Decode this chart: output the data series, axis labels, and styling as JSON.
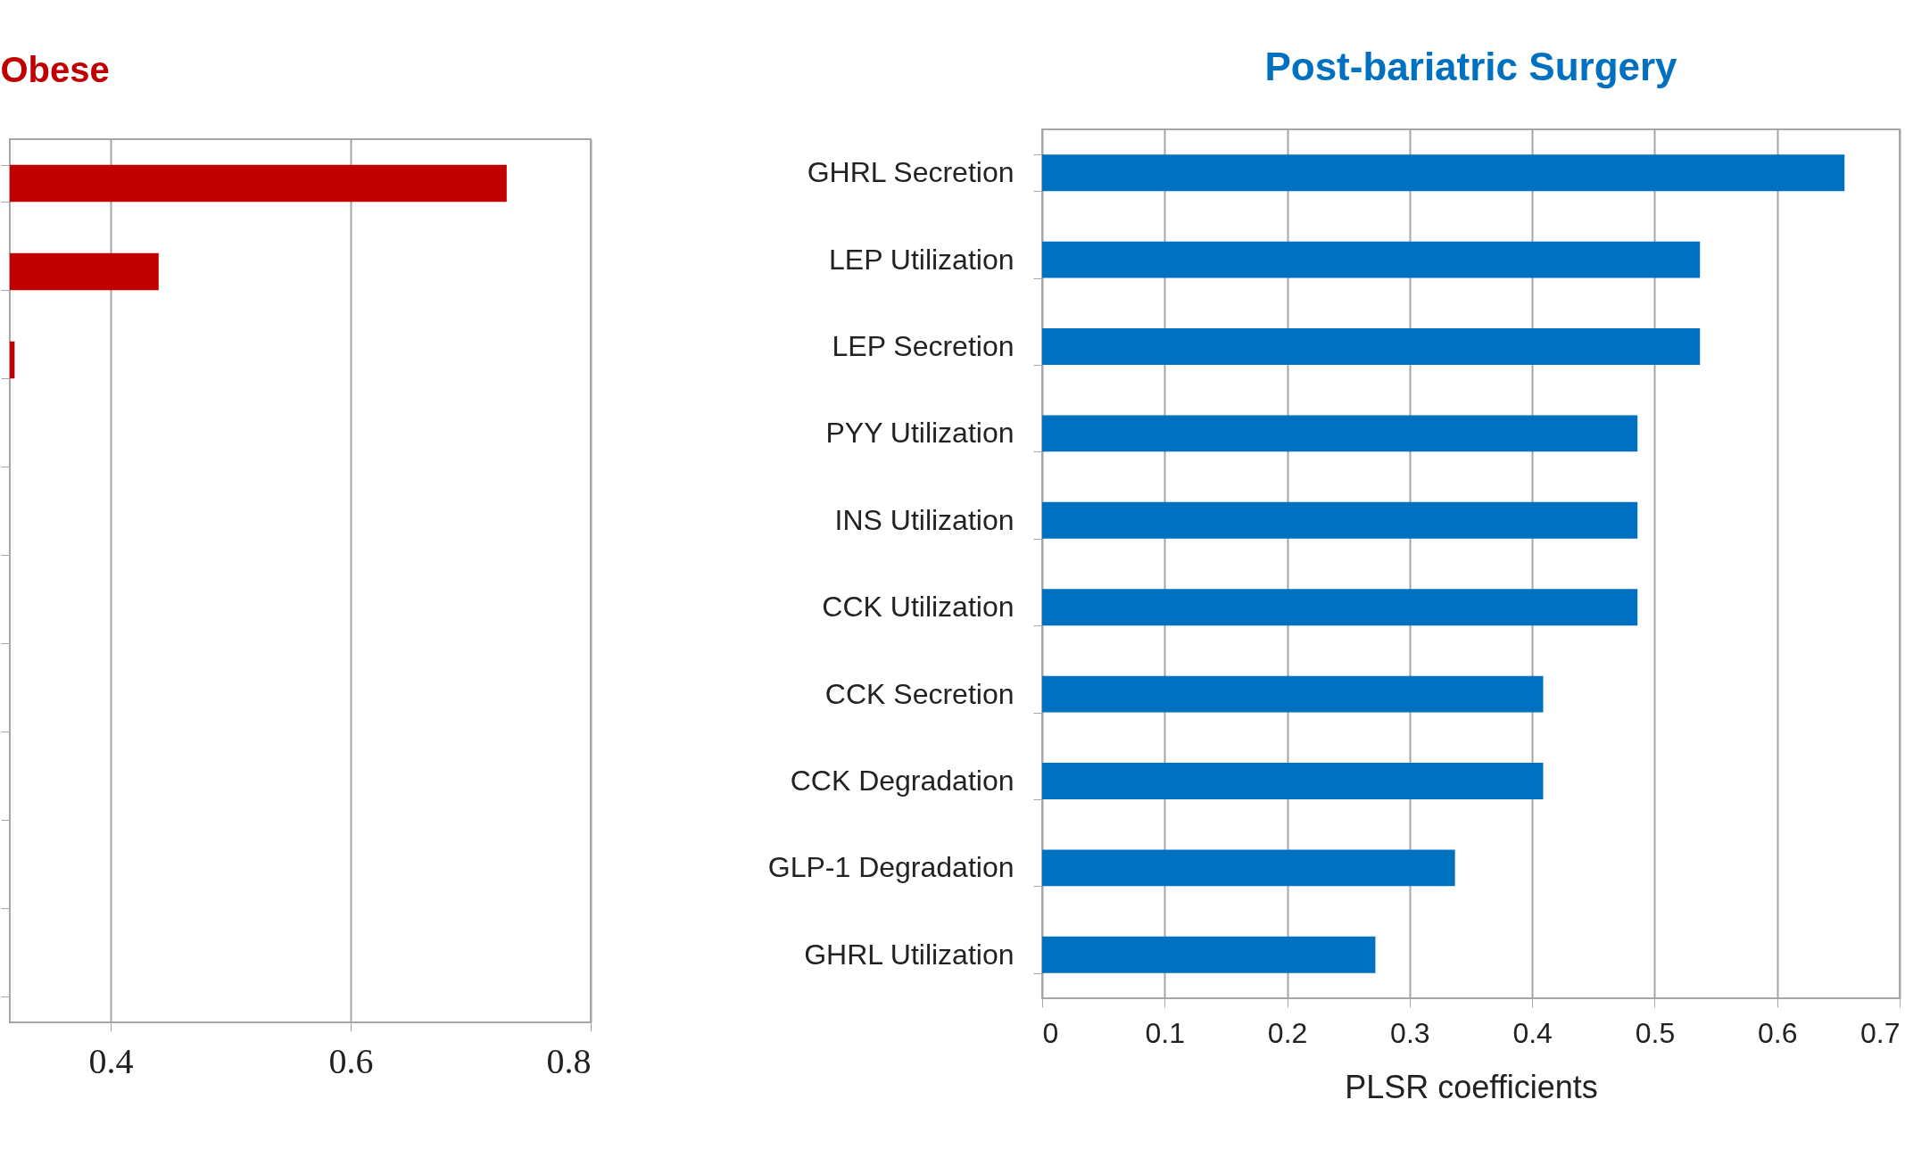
{
  "chart_data": [
    {
      "type": "bar",
      "orientation": "horizontal",
      "title": "Obese",
      "categories": [
        null,
        null,
        null,
        null,
        null,
        null,
        null,
        null,
        null,
        null
      ],
      "series": [
        {
          "color": "#c00000",
          "values": [
            0.73,
            0.44,
            0.32,
            null,
            null,
            null,
            null,
            null,
            null,
            null
          ]
        }
      ],
      "xlim": [
        0.316,
        0.8
      ],
      "xticks": [
        0.4,
        0.6,
        0.8
      ],
      "grid": "x",
      "tick_labels": "x"
    },
    {
      "type": "bar",
      "orientation": "horizontal",
      "title": "Post-bariatric Surgery",
      "xlabel": "PLSR coefficients",
      "categories": [
        "GHRL Secretion",
        "LEP Utilization",
        "LEP Secretion",
        "PYY Utilization",
        "INS Utilization",
        "CCK Utilization",
        "CCK Secretion",
        "CCK Degradation",
        "GLP-1 Degradation",
        "GHRL Utilization"
      ],
      "series": [
        {
          "color": "#0070c0",
          "values": [
            0.655,
            0.537,
            0.537,
            0.486,
            0.486,
            0.486,
            0.409,
            0.409,
            0.337,
            0.272
          ]
        }
      ],
      "xlim": [
        0,
        0.7
      ],
      "xticks": [
        0,
        0.1,
        0.2,
        0.3,
        0.4,
        0.5,
        0.6,
        0.7
      ],
      "grid": "x"
    }
  ]
}
